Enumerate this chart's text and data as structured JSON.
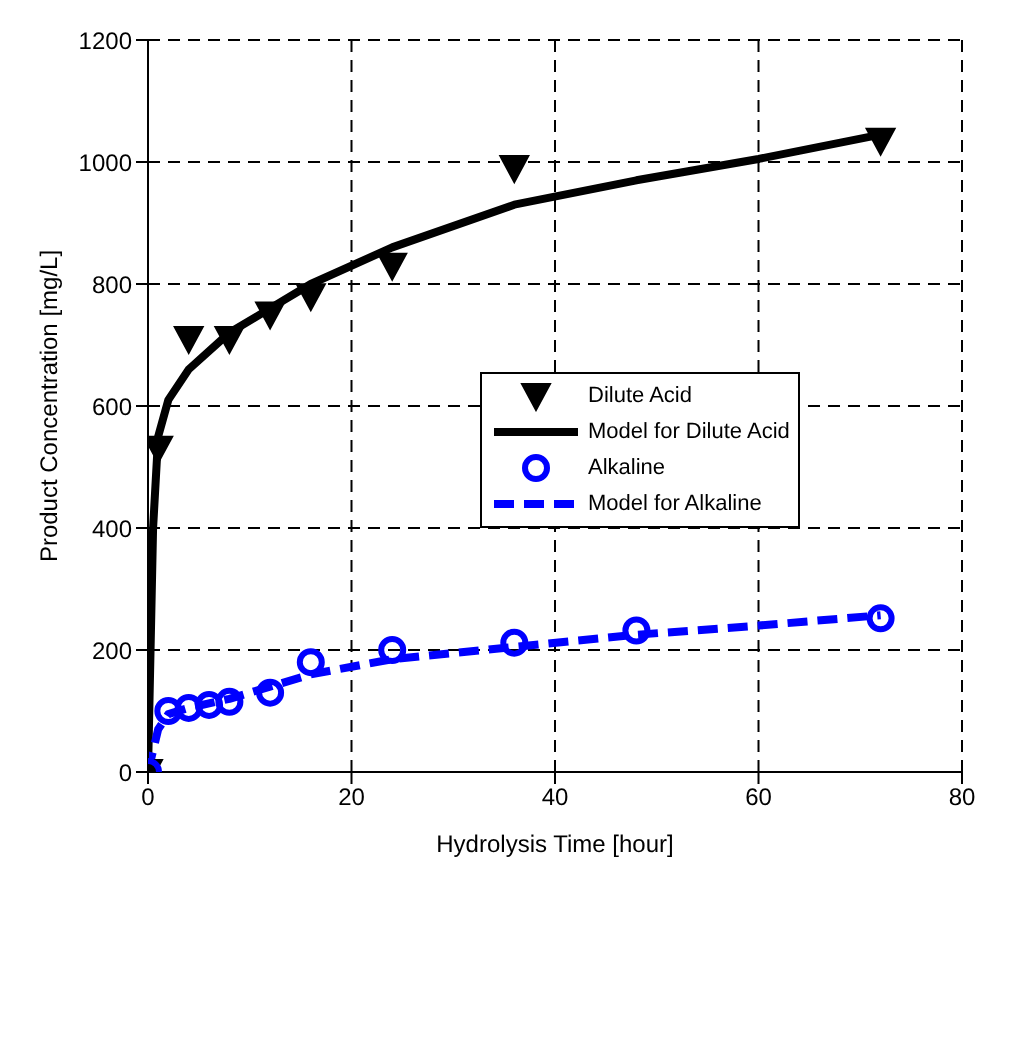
{
  "chart_data": {
    "type": "scatter",
    "xlabel": "Hydrolysis Time [hour]",
    "ylabel": "Product Concentration [mg/L]",
    "xlim": [
      0,
      80
    ],
    "xticks": [
      0,
      20,
      40,
      60,
      80
    ],
    "ylim": [
      0,
      1200
    ],
    "yticks": [
      0,
      200,
      400,
      600,
      800,
      1000,
      1200
    ],
    "grid": true,
    "legend": "right",
    "series": [
      {
        "name": "Dilute Acid",
        "type": "scatter",
        "color": "#000000",
        "marker": "triangle",
        "x": [
          0,
          1,
          4,
          8,
          12,
          16,
          24,
          36,
          72
        ],
        "values": [
          0,
          530,
          710,
          710,
          750,
          780,
          830,
          990,
          1035
        ]
      },
      {
        "name": "Model for Dilute Acid",
        "type": "line",
        "color": "#000000",
        "marker": "none",
        "line_style": "solid",
        "x": [
          0,
          0.5,
          1,
          2,
          4,
          8,
          12,
          16,
          24,
          36,
          48,
          60,
          72
        ],
        "values": [
          0,
          400,
          550,
          610,
          660,
          720,
          760,
          800,
          860,
          930,
          970,
          1005,
          1045
        ]
      },
      {
        "name": "Alkaline",
        "type": "scatter",
        "color": "#0000ff",
        "marker": "circle",
        "x": [
          0,
          2,
          4,
          6,
          8,
          12,
          16,
          24,
          36,
          48,
          72
        ],
        "values": [
          0,
          100,
          105,
          110,
          115,
          130,
          180,
          200,
          212,
          232,
          252
        ]
      },
      {
        "name": "Model for Alkaline",
        "type": "line",
        "color": "#0000ff",
        "marker": "none",
        "line_style": "dashed",
        "x": [
          0,
          1,
          2,
          4,
          8,
          12,
          16,
          24,
          36,
          48,
          60,
          72
        ],
        "values": [
          0,
          70,
          95,
          105,
          120,
          140,
          160,
          185,
          205,
          225,
          240,
          257
        ]
      }
    ]
  }
}
